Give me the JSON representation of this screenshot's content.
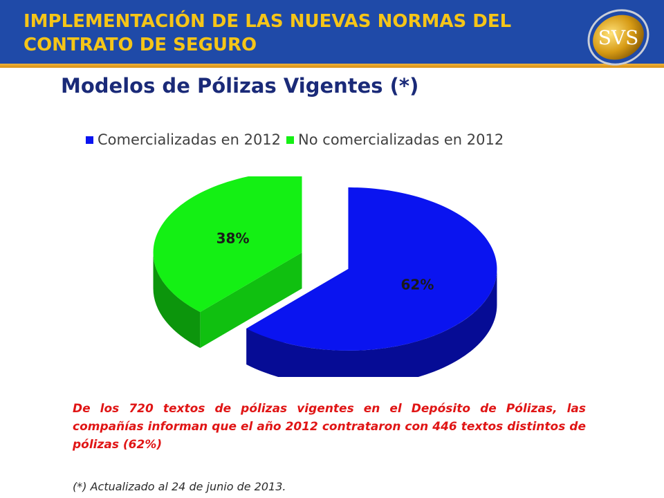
{
  "header": {
    "title": "IMPLEMENTACIÓN DE LAS NUEVAS NORMAS DEL CONTRATO DE SEGURO",
    "logo_text": "SVS"
  },
  "subtitle": "Modelos de Pólizas Vigentes (*)",
  "chart_data": {
    "type": "pie",
    "labels": [
      "Comercializadas en 2012",
      "No comercializadas en 2012"
    ],
    "values": [
      62,
      38
    ],
    "data_labels": [
      "62%",
      "38%"
    ],
    "colors": [
      "#0a14f0",
      "#14f014"
    ],
    "legend_position": "top",
    "style": "3d-exploded"
  },
  "caption": "De los 720 textos de pólizas vigentes en el Depósito de Pólizas, las compañías informan que el año 2012 contrataron con  446 textos distintos de pólizas (62%)",
  "footnote": "(*) Actualizado al 24 de junio de 2013."
}
